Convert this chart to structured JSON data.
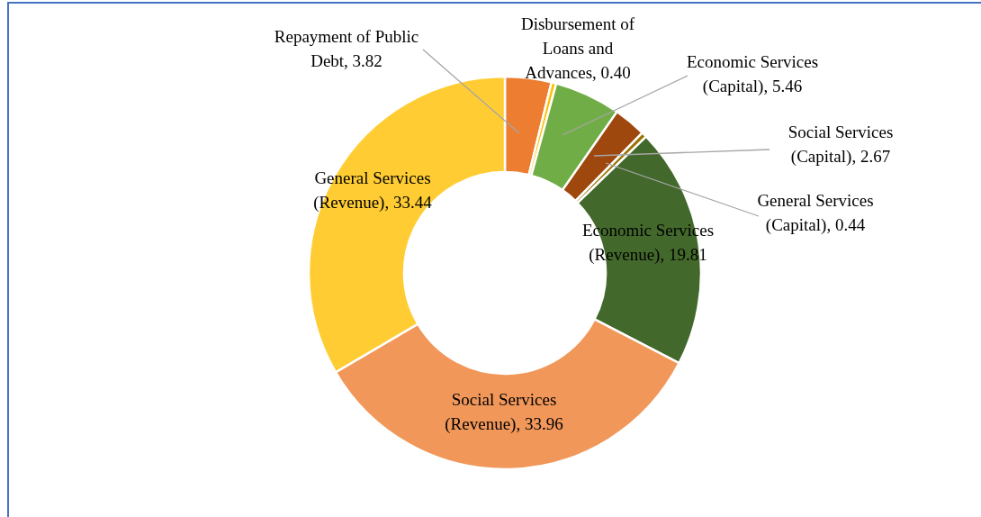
{
  "chart_data": {
    "type": "donut",
    "categories": [
      "Repayment of Public Debt",
      "Disbursement of Loans and Advances",
      "Economic Services (Capital)",
      "Social Services (Capital)",
      "General Services (Capital)",
      "Economic Services (Revenue)",
      "Social Services (Revenue)",
      "General Services (Revenue)"
    ],
    "values": [
      3.82,
      0.4,
      5.46,
      2.67,
      0.44,
      19.81,
      33.96,
      33.44
    ],
    "value_labels": [
      "3.82",
      "0.40",
      "5.46",
      "2.67",
      "0.44",
      "19.81",
      "33.96",
      "33.44"
    ],
    "colors": [
      "#ed7d31",
      "#ffc000",
      "#70ad47",
      "#9e480e",
      "#997300",
      "#43682b",
      "#f1975a",
      "#ffcd33"
    ]
  }
}
